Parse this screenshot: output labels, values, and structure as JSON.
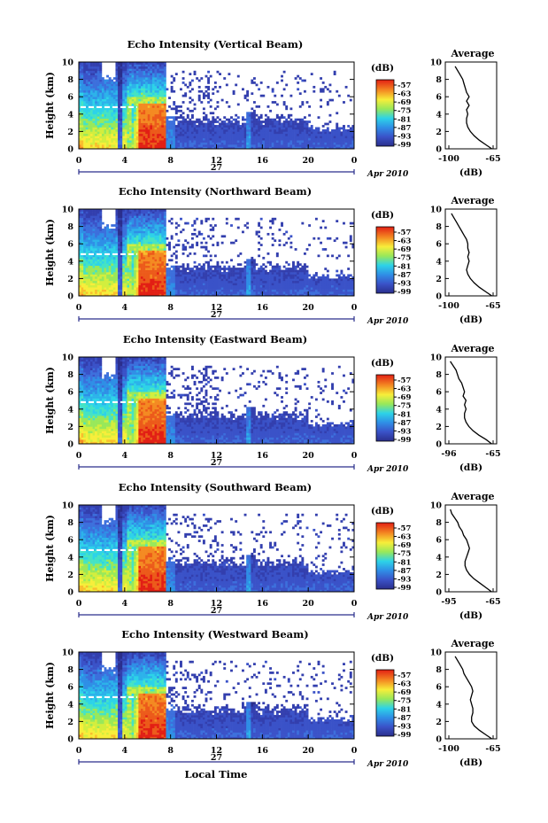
{
  "figure": {
    "date_label": "Apr 2010",
    "day_label": "27",
    "xlabel": "Local Time",
    "colorbar_unit": "(dB)"
  },
  "chart_data": [
    {
      "type": "heatmap",
      "title": "Echo Intensity (Vertical Beam)",
      "xlabel": "",
      "ylabel": "Height (km)",
      "x_ticks": [
        "0",
        "4",
        "8",
        "12",
        "16",
        "20",
        "0"
      ],
      "y_ticks": [
        "0",
        "2",
        "4",
        "6",
        "8",
        "10"
      ],
      "xlim": [
        0,
        24
      ],
      "ylim": [
        0,
        10
      ],
      "colorbar": {
        "label": "(dB)",
        "ticks": [
          "-57",
          "-63",
          "-69",
          "-75",
          "-81",
          "-87",
          "-93",
          "-99"
        ]
      },
      "profile": {
        "title": "Average",
        "xlabel": "(dB)",
        "xlim": [
          -100,
          -65
        ],
        "x_ticks": [
          "-100",
          "-65"
        ],
        "height": [
          0,
          0.5,
          1,
          1.5,
          2,
          2.5,
          3,
          3.5,
          4,
          4.5,
          5,
          5.5,
          6,
          6.5,
          7,
          7.5,
          8,
          8.5,
          9,
          9.5
        ],
        "value": [
          -66,
          -71,
          -76,
          -80,
          -83,
          -85,
          -86,
          -86,
          -85,
          -86,
          -84,
          -86,
          -84,
          -86,
          -87,
          -88,
          -89,
          -91,
          -93,
          -95
        ]
      }
    },
    {
      "type": "heatmap",
      "title": "Echo Intensity (Northward Beam)",
      "xlabel": "",
      "ylabel": "Height (km)",
      "x_ticks": [
        "0",
        "4",
        "8",
        "12",
        "16",
        "20",
        "0"
      ],
      "y_ticks": [
        "0",
        "2",
        "4",
        "6",
        "8",
        "10"
      ],
      "xlim": [
        0,
        24
      ],
      "ylim": [
        0,
        10
      ],
      "colorbar": {
        "label": "(dB)",
        "ticks": [
          "-57",
          "-63",
          "-69",
          "-75",
          "-81",
          "-87",
          "-93",
          "-99"
        ]
      },
      "profile": {
        "title": "Average",
        "xlabel": "(dB)",
        "xlim": [
          -100,
          -65
        ],
        "x_ticks": [
          "-100",
          "-65"
        ],
        "height": [
          0,
          0.5,
          1,
          1.5,
          2,
          2.5,
          3,
          3.5,
          4,
          4.5,
          5,
          5.5,
          6,
          6.5,
          7,
          7.5,
          8,
          8.5,
          9,
          9.5
        ],
        "value": [
          -66,
          -71,
          -76,
          -80,
          -83,
          -85,
          -86,
          -85,
          -84,
          -85,
          -84,
          -85,
          -85,
          -86,
          -88,
          -90,
          -92,
          -94,
          -96,
          -98
        ]
      }
    },
    {
      "type": "heatmap",
      "title": "Echo Intensity (Eastward Beam)",
      "xlabel": "",
      "ylabel": "Height (km)",
      "x_ticks": [
        "0",
        "4",
        "8",
        "12",
        "16",
        "20",
        "0"
      ],
      "y_ticks": [
        "0",
        "2",
        "4",
        "6",
        "8",
        "10"
      ],
      "xlim": [
        0,
        24
      ],
      "ylim": [
        0,
        10
      ],
      "colorbar": {
        "label": "(dB)",
        "ticks": [
          "-57",
          "-63",
          "-69",
          "-75",
          "-81",
          "-87",
          "-93",
          "-99"
        ]
      },
      "profile": {
        "title": "Average",
        "xlabel": "(dB)",
        "xlim": [
          -96,
          -65
        ],
        "x_ticks": [
          "-96",
          "-65"
        ],
        "height": [
          0,
          0.5,
          1,
          1.5,
          2,
          2.5,
          3,
          3.5,
          4,
          4.5,
          5,
          5.5,
          6,
          6.5,
          7,
          7.5,
          8,
          8.5,
          9,
          9.5
        ],
        "value": [
          -66,
          -70,
          -75,
          -79,
          -82,
          -84,
          -85,
          -85,
          -84,
          -85,
          -84,
          -86,
          -85,
          -86,
          -87,
          -89,
          -90,
          -91,
          -93,
          -95
        ]
      }
    },
    {
      "type": "heatmap",
      "title": "Echo Intensity (Southward Beam)",
      "xlabel": "",
      "ylabel": "Height (km)",
      "x_ticks": [
        "0",
        "4",
        "8",
        "12",
        "16",
        "20",
        "0"
      ],
      "y_ticks": [
        "0",
        "2",
        "4",
        "6",
        "8",
        "10"
      ],
      "xlim": [
        0,
        24
      ],
      "ylim": [
        0,
        10
      ],
      "colorbar": {
        "label": "(dB)",
        "ticks": [
          "-57",
          "-63",
          "-69",
          "-75",
          "-81",
          "-87",
          "-93",
          "-99"
        ]
      },
      "profile": {
        "title": "Average",
        "xlabel": "(dB)",
        "xlim": [
          -95,
          -65
        ],
        "x_ticks": [
          "-95",
          "-65"
        ],
        "height": [
          0,
          0.5,
          1,
          1.5,
          2,
          2.5,
          3,
          3.5,
          4,
          4.5,
          5,
          5.5,
          6,
          6.5,
          7,
          7.5,
          8,
          8.5,
          9,
          9.5
        ],
        "value": [
          -66,
          -70,
          -74,
          -78,
          -81,
          -83,
          -84,
          -84,
          -83,
          -82,
          -81,
          -82,
          -83,
          -85,
          -86,
          -88,
          -89,
          -91,
          -93,
          -94
        ]
      }
    },
    {
      "type": "heatmap",
      "title": "Echo Intensity (Westward Beam)",
      "xlabel": "Local Time",
      "ylabel": "Height (km)",
      "x_ticks": [
        "0",
        "4",
        "8",
        "12",
        "16",
        "20",
        "0"
      ],
      "y_ticks": [
        "0",
        "2",
        "4",
        "6",
        "8",
        "10"
      ],
      "xlim": [
        0,
        24
      ],
      "ylim": [
        0,
        10
      ],
      "colorbar": {
        "label": "(dB)",
        "ticks": [
          "-57",
          "-63",
          "-69",
          "-75",
          "-81",
          "-87",
          "-93",
          "-99"
        ]
      },
      "profile": {
        "title": "Average",
        "xlabel": "(dB)",
        "xlim": [
          -100,
          -65
        ],
        "x_ticks": [
          "-100",
          "-65"
        ],
        "height": [
          0,
          0.5,
          1,
          1.5,
          2,
          2.5,
          3,
          3.5,
          4,
          4.5,
          5,
          5.5,
          6,
          6.5,
          7,
          7.5,
          8,
          8.5,
          9,
          9.5
        ],
        "value": [
          -66,
          -71,
          -76,
          -80,
          -82,
          -82,
          -81,
          -81,
          -82,
          -83,
          -82,
          -81,
          -82,
          -84,
          -86,
          -88,
          -89,
          -91,
          -93,
          -95
        ]
      }
    }
  ]
}
